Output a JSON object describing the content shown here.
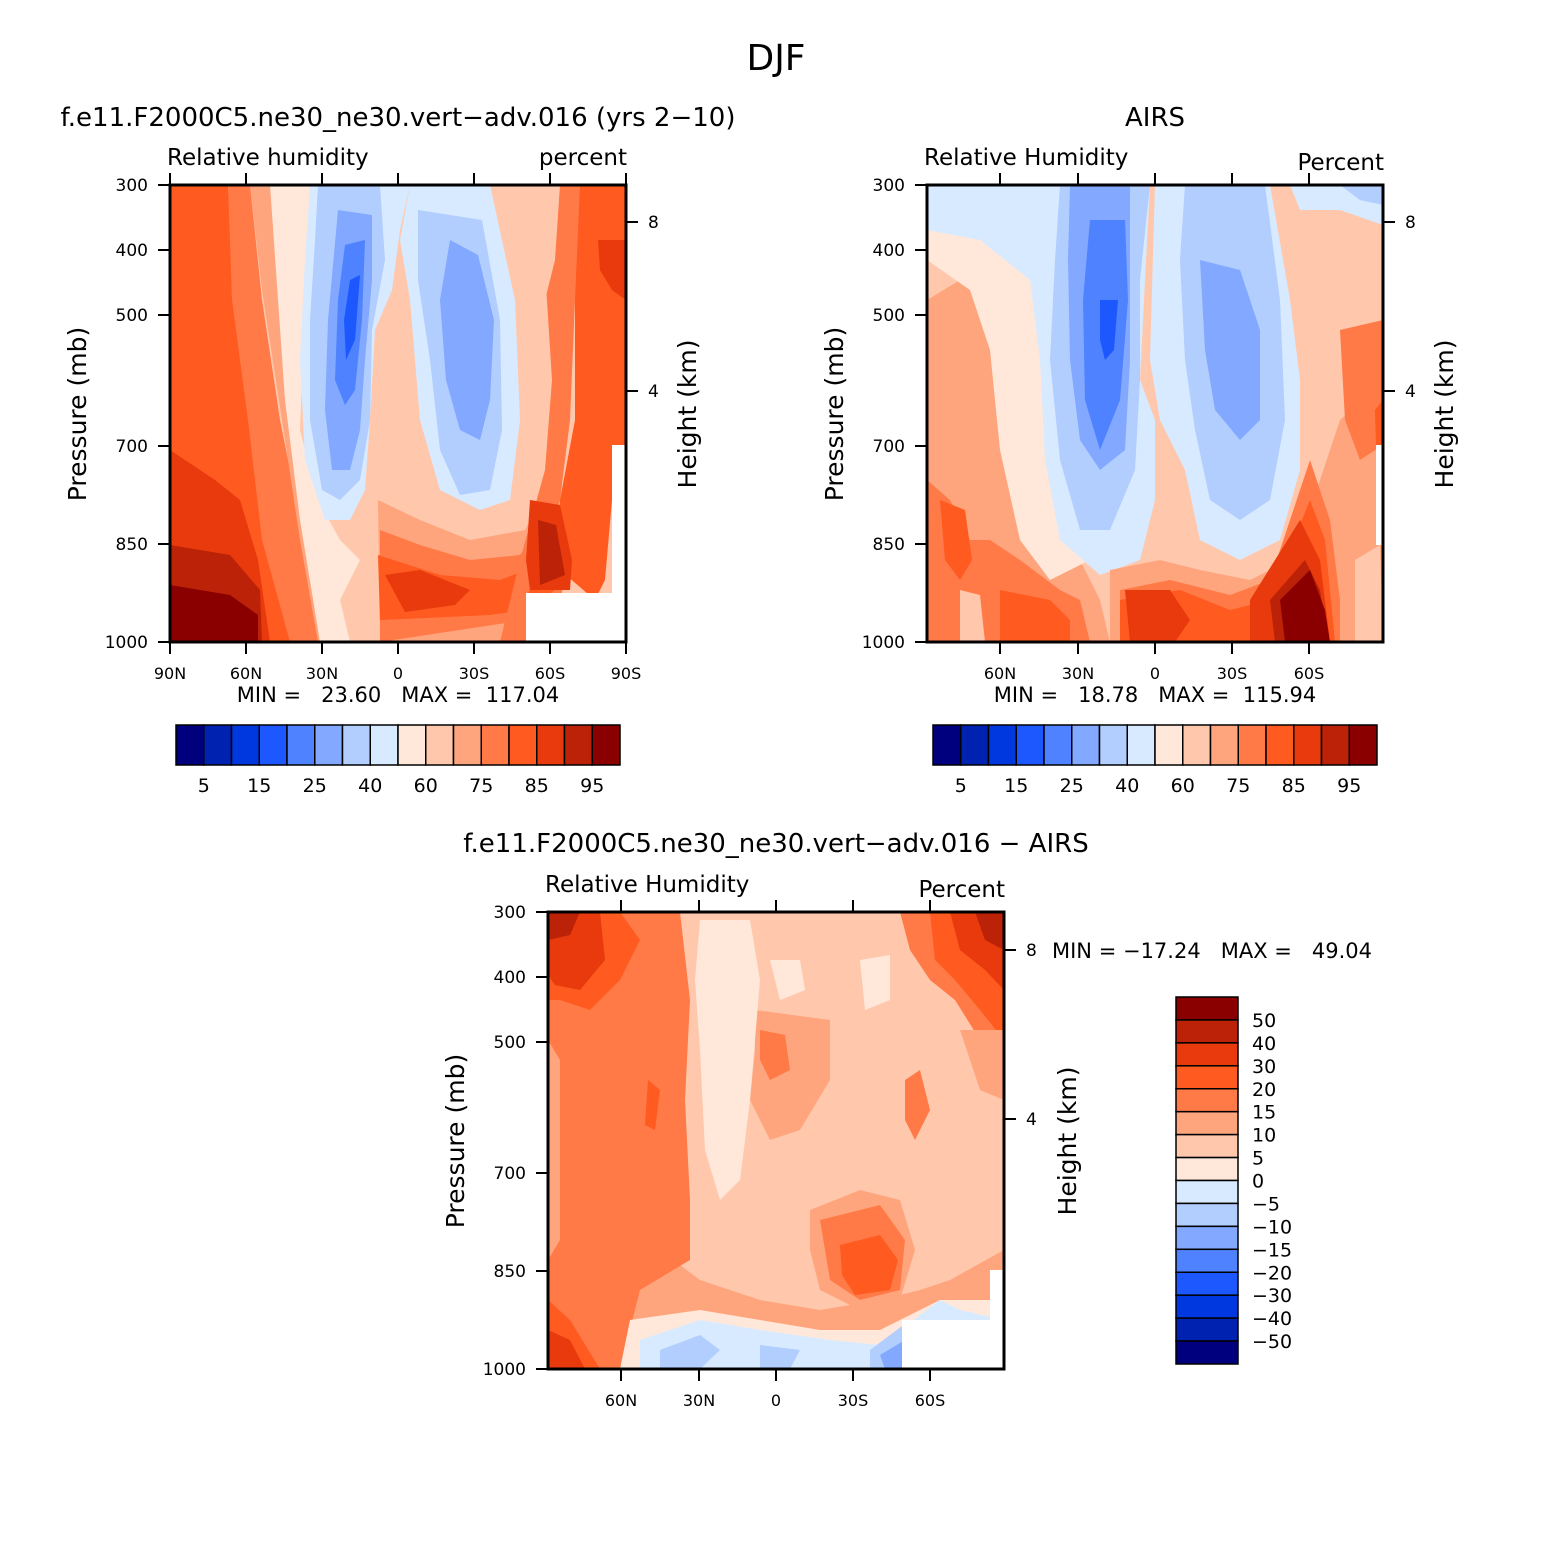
{
  "figure": {
    "title": "DJF"
  },
  "panels": [
    {
      "id": "model",
      "title": "f.e11.F2000C5.ne30_ne30.vert−adv.016 (yrs 2−10)",
      "left_label": "Relative humidity",
      "right_label": "percent",
      "ylabel": "Pressure (mb)",
      "y2label": "Height (km)",
      "stats": "MIN =   23.60   MAX =  117.04"
    },
    {
      "id": "obs",
      "title": "AIRS",
      "left_label": "Relative Humidity",
      "right_label": "Percent",
      "ylabel": "Pressure (mb)",
      "y2label": "Height (km)",
      "stats": "MIN =   18.78   MAX =  115.94"
    },
    {
      "id": "diff",
      "title": "f.e11.F2000C5.ne30_ne30.vert−adv.016 − AIRS",
      "left_label": "Relative Humidity",
      "right_label": "Percent",
      "ylabel": "Pressure (mb)",
      "y2label": "Height (km)",
      "stats": "MIN = −17.24   MAX =   49.04"
    }
  ],
  "colorbars": {
    "absolute": {
      "colors": [
        "#00007f",
        "#0022b0",
        "#0038e0",
        "#1d58ff",
        "#4f82ff",
        "#82a8ff",
        "#b2ceff",
        "#d8eaff",
        "#ffe8da",
        "#ffc8ad",
        "#ffa57e",
        "#ff7a47",
        "#ff5a1f",
        "#e83a0c",
        "#bb2207",
        "#8a0000"
      ],
      "tick_labels": [
        "5",
        "15",
        "25",
        "40",
        "60",
        "75",
        "85",
        "95"
      ]
    },
    "difference": {
      "colors": [
        "#00007f",
        "#0022b0",
        "#0038e0",
        "#1d58ff",
        "#4f82ff",
        "#82a8ff",
        "#b2ceff",
        "#d8eaff",
        "#ffe8da",
        "#ffc8ad",
        "#ffa57e",
        "#ff7a47",
        "#ff5a1f",
        "#e83a0c",
        "#bb2207",
        "#8a0000"
      ],
      "tick_labels": [
        "50",
        "40",
        "30",
        "20",
        "15",
        "10",
        "5",
        "0",
        "−5",
        "−10",
        "−15",
        "−20",
        "−30",
        "−40",
        "−50"
      ]
    }
  },
  "chart_data": [
    {
      "type": "heatmap",
      "title": "f.e11.F2000C5.ne30_ne30.vert−adv.016 (yrs 2−10)",
      "subtitle_left": "Relative humidity",
      "subtitle_right": "percent",
      "ylabel": "Pressure (mb)",
      "y2label": "Height (km)",
      "x_ticks": [
        "90N",
        "60N",
        "30N",
        "0",
        "30S",
        "60S",
        "90S"
      ],
      "y_ticks": [
        "300",
        "400",
        "500",
        "700",
        "850",
        "1000"
      ],
      "y2_ticks": [
        "8",
        "4"
      ],
      "y_log_scale": true,
      "ylim": [
        1000,
        300
      ],
      "min": 23.6,
      "max": 117.04,
      "contour_levels": [
        5,
        10,
        15,
        20,
        25,
        30,
        40,
        50,
        60,
        70,
        75,
        80,
        85,
        90,
        95
      ]
    },
    {
      "type": "heatmap",
      "title": "AIRS",
      "subtitle_left": "Relative Humidity",
      "subtitle_right": "Percent",
      "ylabel": "Pressure (mb)",
      "y2label": "Height (km)",
      "x_ticks": [
        "60N",
        "30N",
        "0",
        "30S",
        "60S"
      ],
      "y_ticks": [
        "300",
        "400",
        "500",
        "700",
        "850",
        "1000"
      ],
      "y2_ticks": [
        "8",
        "4"
      ],
      "y_log_scale": true,
      "ylim": [
        1000,
        300
      ],
      "min": 18.78,
      "max": 115.94,
      "contour_levels": [
        5,
        10,
        15,
        20,
        25,
        30,
        40,
        50,
        60,
        70,
        75,
        80,
        85,
        90,
        95
      ]
    },
    {
      "type": "heatmap",
      "title": "f.e11.F2000C5.ne30_ne30.vert−adv.016 − AIRS",
      "subtitle_left": "Relative Humidity",
      "subtitle_right": "Percent",
      "ylabel": "Pressure (mb)",
      "y2label": "Height (km)",
      "x_ticks": [
        "60N",
        "30N",
        "0",
        "30S",
        "60S"
      ],
      "y_ticks": [
        "300",
        "400",
        "500",
        "700",
        "850",
        "1000"
      ],
      "y2_ticks": [
        "8",
        "4"
      ],
      "y_log_scale": true,
      "ylim": [
        1000,
        300
      ],
      "min": -17.24,
      "max": 49.04,
      "contour_levels": [
        -50,
        -40,
        -30,
        -20,
        -15,
        -10,
        -5,
        0,
        5,
        10,
        15,
        20,
        30,
        40,
        50
      ]
    }
  ]
}
